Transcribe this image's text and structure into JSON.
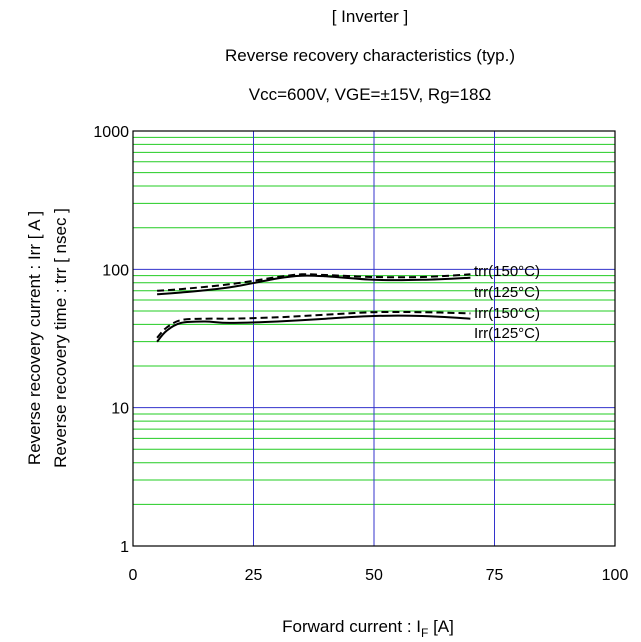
{
  "chart_data": {
    "type": "line",
    "title": [
      "[ Inverter ]",
      "Reverse recovery characteristics  (typ.)",
      "Vcc=600V,   VGE=±15V,   Rg=18Ω"
    ],
    "xlabel": "Forward current : I",
    "xlabel_sub": "F",
    "xlabel_suffix": " [A]",
    "ylabel": [
      "Reverse recovery current  :  Irr  [ A ]",
      "Reverse recovery time  :  trr  [ nsec ]"
    ],
    "xlim": [
      0,
      100
    ],
    "ylim": [
      1,
      1000
    ],
    "yscale": "log",
    "grid": true,
    "x_ticks": [
      0,
      25,
      50,
      75,
      100
    ],
    "x_tick_labels": [
      "0",
      "25",
      "50",
      "75",
      "100"
    ],
    "y_ticks": [
      1,
      10,
      100,
      1000
    ],
    "y_tick_labels": [
      "1",
      "10",
      "100",
      "1000"
    ],
    "series": [
      {
        "name": "trr(150°C)",
        "style": "dashed",
        "x": [
          5,
          10,
          20,
          30,
          35,
          40,
          50,
          60,
          70
        ],
        "y": [
          70,
          72,
          78,
          88,
          92,
          91,
          88,
          88,
          92
        ]
      },
      {
        "name": "trr(125°C)",
        "style": "solid",
        "x": [
          5,
          10,
          20,
          30,
          35,
          40,
          50,
          60,
          70
        ],
        "y": [
          66,
          68,
          74,
          86,
          90,
          89,
          84,
          84,
          87
        ]
      },
      {
        "name": "Irr(150°C)",
        "style": "dashed",
        "x": [
          5,
          7,
          10,
          15,
          20,
          30,
          40,
          50,
          60,
          70
        ],
        "y": [
          32,
          38,
          43,
          44,
          44,
          45,
          47,
          49,
          49,
          48
        ]
      },
      {
        "name": "Irr(125°C)",
        "style": "solid",
        "x": [
          5,
          7,
          10,
          15,
          20,
          30,
          40,
          50,
          60,
          70
        ],
        "y": [
          30,
          36,
          41,
          42,
          41,
          42,
          44,
          46,
          46,
          44
        ]
      }
    ],
    "colors": {
      "major_grid": "#3333cc",
      "minor_grid": "#22cc22",
      "frame": "#000000",
      "line": "#000000"
    }
  }
}
